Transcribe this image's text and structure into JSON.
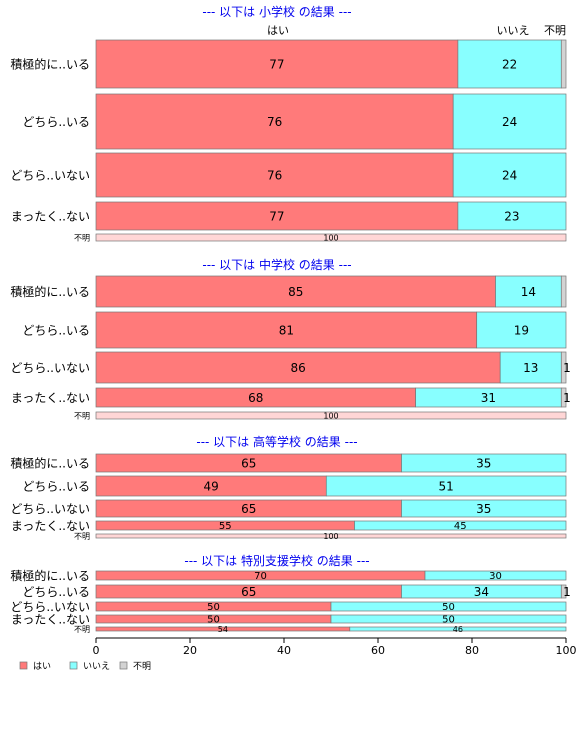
{
  "chart_data": {
    "type": "bar",
    "orientation": "horizontal",
    "stacked": true,
    "xlim": [
      0,
      100
    ],
    "x_ticks": [
      "0",
      "20",
      "40",
      "60",
      "80",
      "100"
    ],
    "column_headers": [
      "はい",
      "いいえ",
      "不明"
    ],
    "legend": {
      "position": "bottom-left",
      "items": [
        {
          "label": "はい",
          "color": "#FF7A7A"
        },
        {
          "label": "いいえ",
          "color": "#88FFFF"
        },
        {
          "label": "不明",
          "color": "#D3D3D3"
        }
      ]
    },
    "colors": {
      "yes": "#FF7A7A",
      "no": "#88FFFF",
      "unknown": "#D3D3D3",
      "title": "#0000EE",
      "unknown_row": "#FFD6D6"
    },
    "panels": [
      {
        "title": "--- 以下は 小学校 の結果 ---",
        "categories": [
          "積極的に..いる",
          "どちら..いる",
          "どちら..いない",
          "まったく..ない",
          "不明"
        ],
        "series": [
          {
            "name": "はい",
            "values": [
              77,
              76,
              76,
              77,
              100
            ]
          },
          {
            "name": "いいえ",
            "values": [
              22,
              24,
              24,
              23,
              0
            ]
          },
          {
            "name": "不明",
            "values": [
              1,
              0,
              0,
              0,
              0
            ]
          }
        ],
        "data_labels": [
          [
            "77",
            "22",
            ""
          ],
          [
            "76",
            "24",
            ""
          ],
          [
            "76",
            "24",
            ""
          ],
          [
            "77",
            "23",
            ""
          ],
          [
            "100",
            "",
            ""
          ]
        ]
      },
      {
        "title": "--- 以下は 中学校 の結果 ---",
        "categories": [
          "積極的に..いる",
          "どちら..いる",
          "どちら..いない",
          "まったく..ない",
          "不明"
        ],
        "series": [
          {
            "name": "はい",
            "values": [
              85,
              81,
              86,
              68,
              100
            ]
          },
          {
            "name": "いいえ",
            "values": [
              14,
              19,
              13,
              31,
              0
            ]
          },
          {
            "name": "不明",
            "values": [
              1,
              0,
              1,
              1,
              0
            ]
          }
        ],
        "data_labels": [
          [
            "85",
            "14",
            ""
          ],
          [
            "81",
            "19",
            ""
          ],
          [
            "86",
            "13",
            "1"
          ],
          [
            "68",
            "31",
            "1"
          ],
          [
            "100",
            "",
            ""
          ]
        ]
      },
      {
        "title": "--- 以下は 高等学校 の結果 ---",
        "categories": [
          "積極的に..いる",
          "どちら..いる",
          "どちら..いない",
          "まったく..ない",
          "不明"
        ],
        "series": [
          {
            "name": "はい",
            "values": [
              65,
              49,
              65,
              55,
              100
            ]
          },
          {
            "name": "いいえ",
            "values": [
              35,
              51,
              35,
              45,
              0
            ]
          },
          {
            "name": "不明",
            "values": [
              0,
              0,
              0,
              0,
              0
            ]
          }
        ],
        "data_labels": [
          [
            "65",
            "35",
            ""
          ],
          [
            "49",
            "51",
            ""
          ],
          [
            "65",
            "35",
            ""
          ],
          [
            "55",
            "45",
            ""
          ],
          [
            "100",
            "",
            ""
          ]
        ]
      },
      {
        "title": "--- 以下は 特別支援学校 の結果 ---",
        "categories": [
          "積極的に..いる",
          "どちら..いる",
          "どちら..いない",
          "まったく..ない",
          "不明"
        ],
        "series": [
          {
            "name": "はい",
            "values": [
              70,
              65,
              50,
              50,
              54
            ]
          },
          {
            "name": "いいえ",
            "values": [
              30,
              34,
              50,
              50,
              46
            ]
          },
          {
            "name": "不明",
            "values": [
              0,
              1,
              0,
              0,
              0
            ]
          }
        ],
        "data_labels": [
          [
            "70",
            "30",
            ""
          ],
          [
            "65",
            "34",
            "1"
          ],
          [
            "50",
            "50",
            ""
          ],
          [
            "50",
            "50",
            ""
          ],
          [
            "54",
            "46",
            ""
          ]
        ]
      }
    ]
  }
}
